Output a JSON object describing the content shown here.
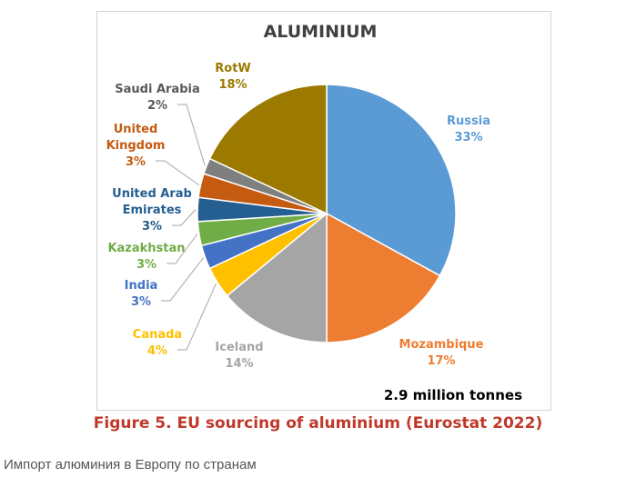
{
  "chart_data": {
    "type": "pie",
    "title": "ALUMINIUM",
    "total_label": "2.9 million tonnes",
    "slices": [
      {
        "label": [
          "Russia"
        ],
        "value": 33,
        "pct_label": "33%",
        "color": "#5b9bd5"
      },
      {
        "label": [
          "Mozambique"
        ],
        "value": 17,
        "pct_label": "17%",
        "color": "#ed7d31"
      },
      {
        "label": [
          "Iceland"
        ],
        "value": 14,
        "pct_label": "14%",
        "color": "#a5a5a5"
      },
      {
        "label": [
          "Canada"
        ],
        "value": 4,
        "pct_label": "4%",
        "color": "#ffc000"
      },
      {
        "label": [
          "India"
        ],
        "value": 3,
        "pct_label": "3%",
        "color": "#4472c4"
      },
      {
        "label": [
          "Kazakhstan"
        ],
        "value": 3,
        "pct_label": "3%",
        "color": "#70ad47"
      },
      {
        "label": [
          "United Arab",
          "Emirates"
        ],
        "value": 3,
        "pct_label": "3%",
        "color": "#255e91"
      },
      {
        "label": [
          "United",
          "Kingdom"
        ],
        "value": 3,
        "pct_label": "3%",
        "color": "#c55a11"
      },
      {
        "label": [
          "Saudi Arabia"
        ],
        "value": 2,
        "pct_label": "2%",
        "color": "#7f7f7f"
      },
      {
        "label": [
          "RotW"
        ],
        "value": 18,
        "pct_label": "18%",
        "color": "#9c7a00"
      }
    ],
    "label_colors": {
      "Russia": "#5b9bd5",
      "Mozambique": "#ed7d31",
      "Iceland": "#a5a5a5",
      "Canada": "#ffc000",
      "India": "#4472c4",
      "Kazakhstan": "#70ad47",
      "United Arab Emirates": "#255e91",
      "United Kingdom": "#c55a11",
      "Saudi Arabia": "#595959",
      "RotW": "#9c7a00"
    }
  },
  "caption": "Figure 5. EU sourcing of aluminium (Eurostat 2022)",
  "subcaption": "Импорт алюминия в Европу по странам"
}
